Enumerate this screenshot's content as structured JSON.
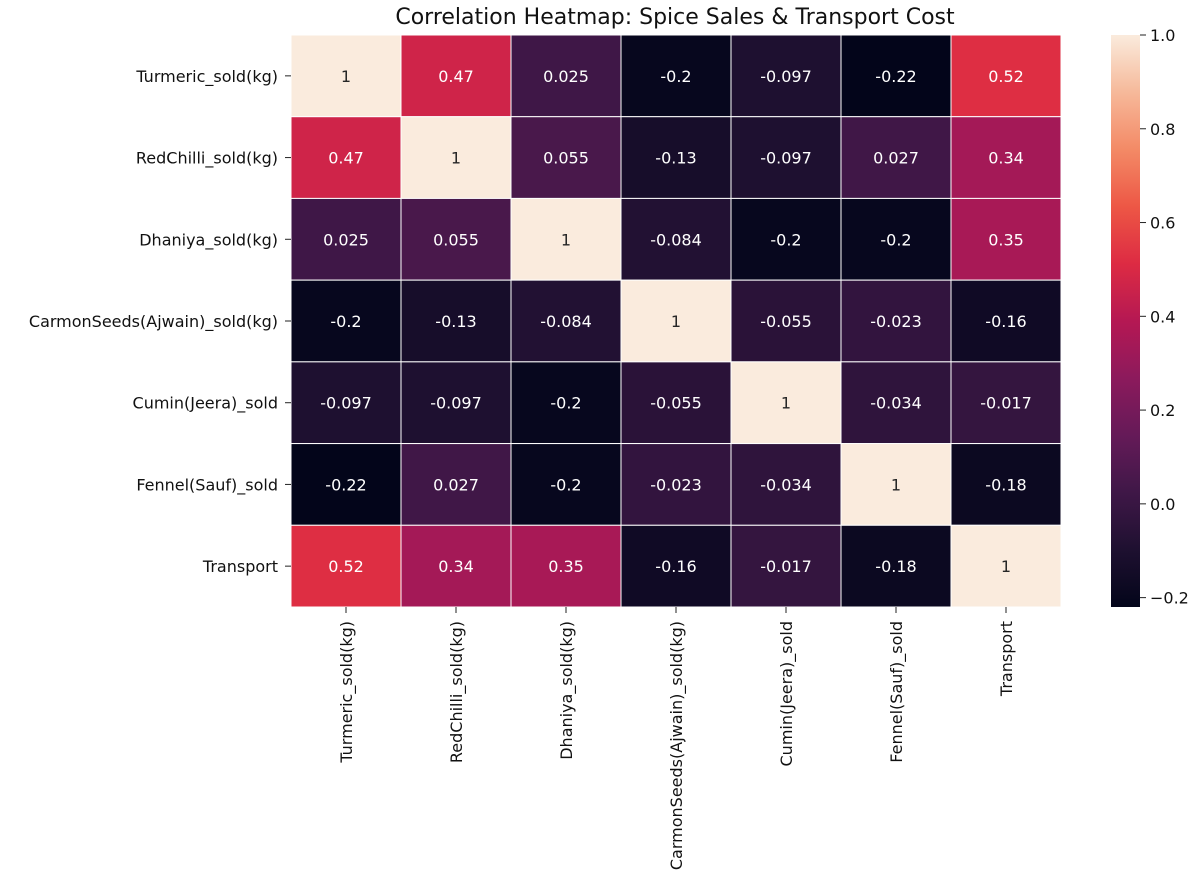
{
  "chart_data": {
    "type": "heatmap",
    "title": "Correlation Heatmap: Spice Sales & Transport Cost",
    "row_labels": [
      "Turmeric_sold(kg)",
      "RedChilli_sold(kg)",
      "Dhaniya_sold(kg)",
      "CarmonSeeds(Ajwain)_sold(kg)",
      "Cumin(Jeera)_sold",
      "Fennel(Sauf)_sold",
      "Transport"
    ],
    "col_labels": [
      "Turmeric_sold(kg)",
      "RedChilli_sold(kg)",
      "Dhaniya_sold(kg)",
      "CarmonSeeds(Ajwain)_sold(kg)",
      "Cumin(Jeera)_sold",
      "Fennel(Sauf)_sold",
      "Transport"
    ],
    "values": [
      [
        1,
        0.47,
        0.025,
        -0.2,
        -0.097,
        -0.22,
        0.52
      ],
      [
        0.47,
        1,
        0.055,
        -0.13,
        -0.097,
        0.027,
        0.34
      ],
      [
        0.025,
        0.055,
        1,
        -0.084,
        -0.2,
        -0.2,
        0.35
      ],
      [
        -0.2,
        -0.13,
        -0.084,
        1,
        -0.055,
        -0.023,
        -0.16
      ],
      [
        -0.097,
        -0.097,
        -0.2,
        -0.055,
        1,
        -0.034,
        -0.017
      ],
      [
        -0.22,
        0.027,
        -0.2,
        -0.023,
        -0.034,
        1,
        -0.18
      ],
      [
        0.52,
        0.34,
        0.35,
        -0.16,
        -0.017,
        -0.18,
        1
      ]
    ],
    "annotations": [
      [
        "1",
        "0.47",
        "0.025",
        "-0.2",
        "-0.097",
        "-0.22",
        "0.52"
      ],
      [
        "0.47",
        "1",
        "0.055",
        "-0.13",
        "-0.097",
        "0.027",
        "0.34"
      ],
      [
        "0.025",
        "0.055",
        "1",
        "-0.084",
        "-0.2",
        "-0.2",
        "0.35"
      ],
      [
        "-0.2",
        "-0.13",
        "-0.084",
        "1",
        "-0.055",
        "-0.023",
        "-0.16"
      ],
      [
        "-0.097",
        "-0.097",
        "-0.2",
        "-0.055",
        "1",
        "-0.034",
        "-0.017"
      ],
      [
        "-0.22",
        "0.027",
        "-0.2",
        "-0.023",
        "-0.034",
        "1",
        "-0.18"
      ],
      [
        "0.52",
        "0.34",
        "0.35",
        "-0.16",
        "-0.017",
        "-0.18",
        "1"
      ]
    ],
    "vmin": -0.22,
    "vmax": 1.0,
    "colormap": "rocket",
    "colorbar": {
      "ticks": [
        -0.2,
        0.0,
        0.2,
        0.4,
        0.6,
        0.8,
        1.0
      ],
      "tick_labels": [
        "−0.2",
        "0.0",
        "0.2",
        "0.4",
        "0.6",
        "0.8",
        "1.0"
      ]
    },
    "grid_line_color": "#ffffff"
  }
}
